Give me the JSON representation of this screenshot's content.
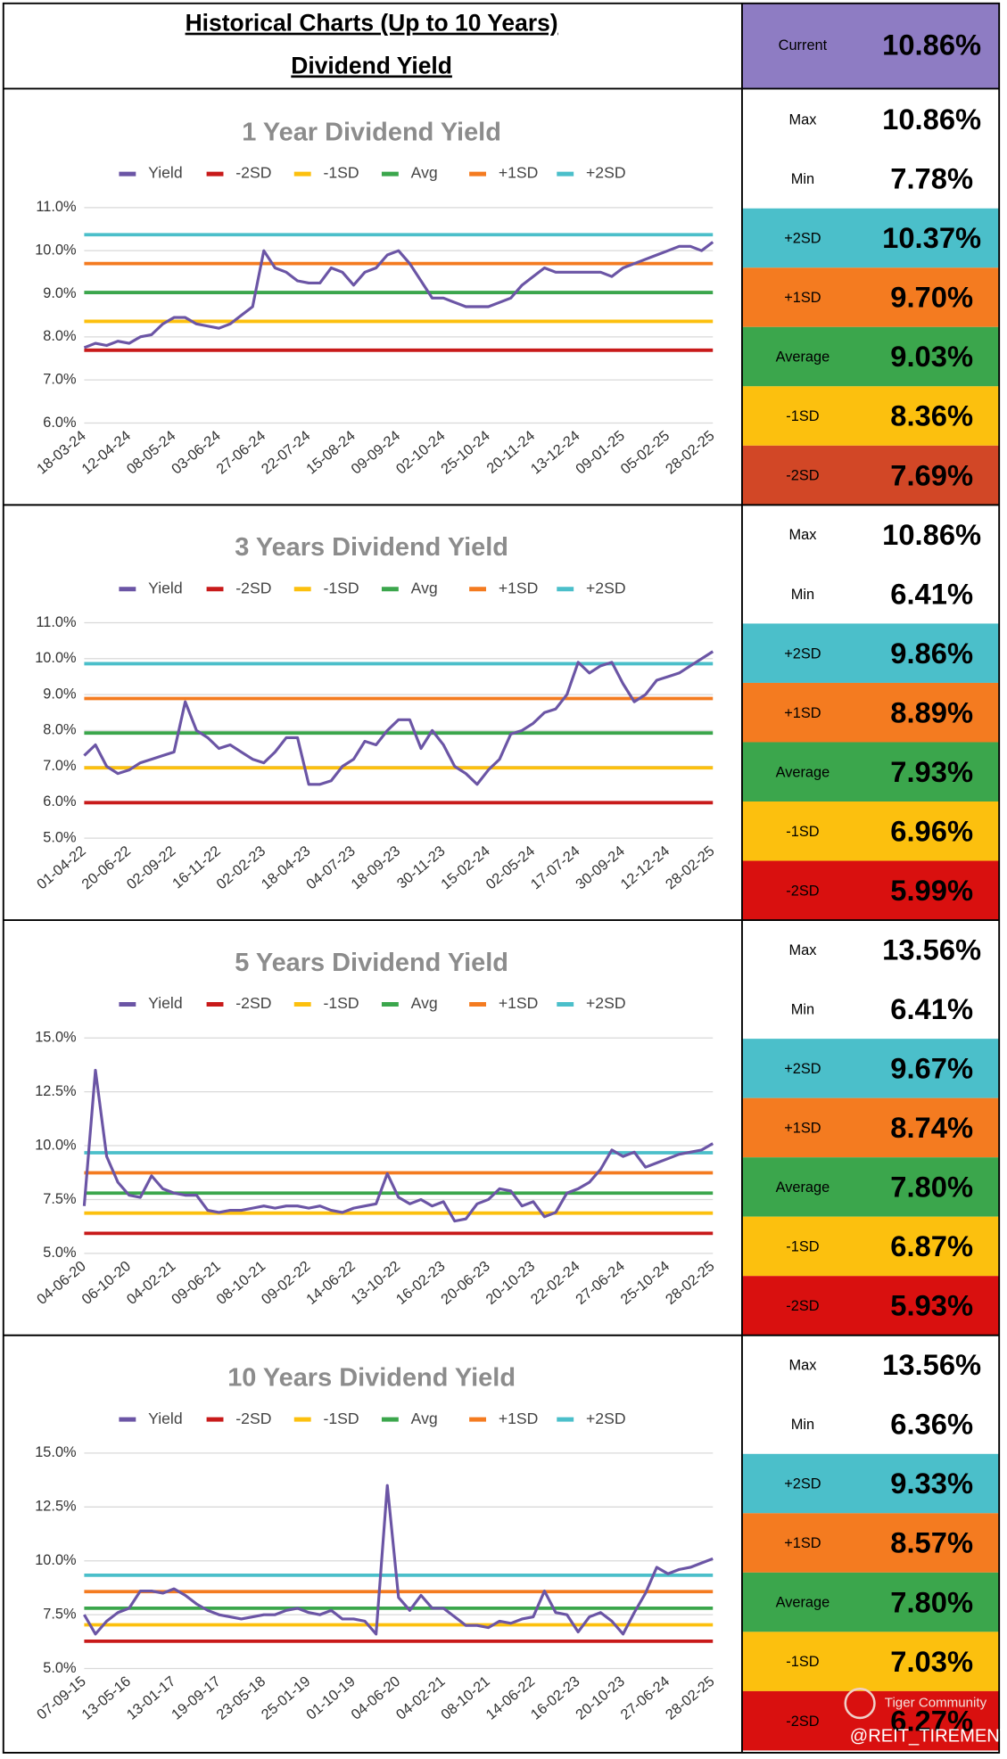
{
  "header": {
    "title": "Historical Charts (Up to 10 Years)",
    "subtitle": "Dividend Yield",
    "current_label": "Current",
    "current_value": 10.86,
    "current_value_label": "10.86%",
    "current_color": "#8e7cc3"
  },
  "chart_data": [
    {
      "type": "line",
      "title": "1 Year Dividend Yield",
      "categories": [
        "18-03-24",
        null,
        null,
        null,
        "12-04-24",
        null,
        null,
        null,
        "08-05-24",
        null,
        null,
        null,
        "03-06-24",
        null,
        null,
        null,
        "27-06-24",
        null,
        null,
        null,
        "22-07-24",
        null,
        null,
        null,
        "15-08-24",
        null,
        null,
        null,
        "09-09-24",
        null,
        null,
        null,
        "02-10-24",
        null,
        null,
        null,
        "25-10-24",
        null,
        null,
        null,
        "20-11-24",
        null,
        null,
        null,
        "13-12-24",
        null,
        null,
        null,
        "09-01-25",
        null,
        null,
        null,
        "05-02-25",
        null,
        null,
        null,
        "28-02-25"
      ],
      "series": [
        {
          "name": "Yield",
          "color": "#6b55a5",
          "values": [
            7.75,
            7.85,
            7.8,
            7.9,
            7.85,
            8.0,
            8.05,
            8.3,
            8.45,
            8.45,
            8.3,
            8.25,
            8.2,
            8.3,
            8.5,
            8.7,
            10.0,
            9.6,
            9.5,
            9.3,
            9.25,
            9.25,
            9.6,
            9.5,
            9.2,
            9.5,
            9.6,
            9.9,
            10.0,
            9.7,
            9.3,
            8.9,
            8.9,
            8.8,
            8.7,
            8.7,
            8.7,
            8.8,
            8.9,
            9.2,
            9.4,
            9.6,
            9.5,
            9.5,
            9.5,
            9.5,
            9.5,
            9.4,
            9.6,
            9.7,
            9.8,
            9.9,
            10.0,
            10.1,
            10.1,
            10.0,
            10.2
          ]
        }
      ],
      "ylim": [
        6,
        11
      ],
      "yticks": [
        {
          "value": 6,
          "label": "6.0%"
        },
        {
          "value": 7,
          "label": "7.0%"
        },
        {
          "value": 8,
          "label": "8.0%"
        },
        {
          "value": 9,
          "label": "9.0%"
        },
        {
          "value": 10,
          "label": "10.0%"
        },
        {
          "value": 11,
          "label": "11.0%"
        }
      ],
      "grid": true,
      "stats": [
        {
          "label": "Max",
          "value": 10.86,
          "value_label": "10.86%"
        },
        {
          "label": "Min",
          "value": 7.78,
          "value_label": "7.78%"
        },
        {
          "label": "+2SD",
          "legend": "+2SD",
          "value": 10.37,
          "value_label": "10.37%",
          "color": "#4bbfca"
        },
        {
          "label": "+1SD",
          "legend": "+1SD",
          "value": 9.7,
          "value_label": "9.70%",
          "color": "#f47b20"
        },
        {
          "label": "Average",
          "legend": "Avg",
          "value": 9.03,
          "value_label": "9.03%",
          "color": "#3ba64c"
        },
        {
          "label": "-1SD",
          "legend": "-1SD",
          "value": 8.36,
          "value_label": "8.36%",
          "color": "#fcc00e"
        },
        {
          "label": "-2SD",
          "legend": "-2SD",
          "value": 7.69,
          "value_label": "7.69%",
          "color": "#c81a1a",
          "cell_color": "#d24726"
        }
      ]
    },
    {
      "type": "line",
      "title": "3 Years Dividend Yield",
      "categories": [
        "01-04-22",
        null,
        null,
        null,
        "20-06-22",
        null,
        null,
        null,
        "02-09-22",
        null,
        null,
        null,
        "16-11-22",
        null,
        null,
        null,
        "02-02-23",
        null,
        null,
        null,
        "18-04-23",
        null,
        null,
        null,
        "04-07-23",
        null,
        null,
        null,
        "18-09-23",
        null,
        null,
        null,
        "30-11-23",
        null,
        null,
        null,
        "15-02-24",
        null,
        null,
        null,
        "02-05-24",
        null,
        null,
        null,
        "17-07-24",
        null,
        null,
        null,
        "30-09-24",
        null,
        null,
        null,
        "12-12-24",
        null,
        null,
        null,
        "28-02-25"
      ],
      "series": [
        {
          "name": "Yield",
          "color": "#6b55a5",
          "values": [
            7.3,
            7.6,
            7.0,
            6.8,
            6.9,
            7.1,
            7.2,
            7.3,
            7.4,
            8.8,
            8.0,
            7.8,
            7.5,
            7.6,
            7.4,
            7.2,
            7.1,
            7.4,
            7.8,
            7.8,
            6.5,
            6.5,
            6.6,
            7.0,
            7.2,
            7.7,
            7.6,
            8.0,
            8.3,
            8.3,
            7.5,
            8.0,
            7.6,
            7.0,
            6.8,
            6.5,
            6.9,
            7.2,
            7.9,
            8.0,
            8.2,
            8.5,
            8.6,
            9.0,
            9.9,
            9.6,
            9.8,
            9.9,
            9.3,
            8.8,
            9.0,
            9.4,
            9.5,
            9.6,
            9.8,
            10.0,
            10.2
          ]
        }
      ],
      "ylim": [
        5,
        11
      ],
      "yticks": [
        {
          "value": 5,
          "label": "5.0%"
        },
        {
          "value": 6,
          "label": "6.0%"
        },
        {
          "value": 7,
          "label": "7.0%"
        },
        {
          "value": 8,
          "label": "8.0%"
        },
        {
          "value": 9,
          "label": "9.0%"
        },
        {
          "value": 10,
          "label": "10.0%"
        },
        {
          "value": 11,
          "label": "11.0%"
        }
      ],
      "grid": true,
      "stats": [
        {
          "label": "Max",
          "value": 10.86,
          "value_label": "10.86%"
        },
        {
          "label": "Min",
          "value": 6.41,
          "value_label": "6.41%"
        },
        {
          "label": "+2SD",
          "legend": "+2SD",
          "value": 9.86,
          "value_label": "9.86%",
          "color": "#4bbfca"
        },
        {
          "label": "+1SD",
          "legend": "+1SD",
          "value": 8.89,
          "value_label": "8.89%",
          "color": "#f47b20"
        },
        {
          "label": "Average",
          "legend": "Avg",
          "value": 7.93,
          "value_label": "7.93%",
          "color": "#3ba64c"
        },
        {
          "label": "-1SD",
          "legend": "-1SD",
          "value": 6.96,
          "value_label": "6.96%",
          "color": "#fcc00e"
        },
        {
          "label": "-2SD",
          "legend": "-2SD",
          "value": 5.99,
          "value_label": "5.99%",
          "color": "#c81a1a",
          "cell_color": "#d9100f"
        }
      ]
    },
    {
      "type": "line",
      "title": "5 Years Dividend Yield",
      "categories": [
        "04-06-20",
        null,
        null,
        null,
        "06-10-20",
        null,
        null,
        null,
        "04-02-21",
        null,
        null,
        null,
        "09-06-21",
        null,
        null,
        null,
        "08-10-21",
        null,
        null,
        null,
        "09-02-22",
        null,
        null,
        null,
        "14-06-22",
        null,
        null,
        null,
        "13-10-22",
        null,
        null,
        null,
        "16-02-23",
        null,
        null,
        null,
        "20-06-23",
        null,
        null,
        null,
        "20-10-23",
        null,
        null,
        null,
        "22-02-24",
        null,
        null,
        null,
        "27-06-24",
        null,
        null,
        null,
        "25-10-24",
        null,
        null,
        null,
        "28-02-25"
      ],
      "series": [
        {
          "name": "Yield",
          "color": "#6b55a5",
          "values": [
            7.2,
            13.5,
            9.5,
            8.3,
            7.7,
            7.6,
            8.6,
            8.0,
            7.8,
            7.7,
            7.7,
            7.0,
            6.9,
            7.0,
            7.0,
            7.1,
            7.2,
            7.1,
            7.2,
            7.2,
            7.1,
            7.2,
            7.0,
            6.9,
            7.1,
            7.2,
            7.3,
            8.7,
            7.6,
            7.3,
            7.5,
            7.2,
            7.4,
            6.5,
            6.6,
            7.3,
            7.5,
            8.0,
            7.9,
            7.2,
            7.4,
            6.7,
            6.9,
            7.8,
            8.0,
            8.3,
            8.9,
            9.8,
            9.5,
            9.7,
            9.0,
            9.2,
            9.4,
            9.6,
            9.7,
            9.8,
            10.1
          ]
        }
      ],
      "ylim": [
        5,
        15
      ],
      "yticks": [
        {
          "value": 5,
          "label": "5.0%"
        },
        {
          "value": 7.5,
          "label": "7.5%"
        },
        {
          "value": 10,
          "label": "10.0%"
        },
        {
          "value": 12.5,
          "label": "12.5%"
        },
        {
          "value": 15,
          "label": "15.0%"
        }
      ],
      "grid": true,
      "stats": [
        {
          "label": "Max",
          "value": 13.56,
          "value_label": "13.56%"
        },
        {
          "label": "Min",
          "value": 6.41,
          "value_label": "6.41%"
        },
        {
          "label": "+2SD",
          "legend": "+2SD",
          "value": 9.67,
          "value_label": "9.67%",
          "color": "#4bbfca"
        },
        {
          "label": "+1SD",
          "legend": "+1SD",
          "value": 8.74,
          "value_label": "8.74%",
          "color": "#f47b20"
        },
        {
          "label": "Average",
          "legend": "Avg",
          "value": 7.8,
          "value_label": "7.80%",
          "color": "#3ba64c"
        },
        {
          "label": "-1SD",
          "legend": "-1SD",
          "value": 6.87,
          "value_label": "6.87%",
          "color": "#fcc00e"
        },
        {
          "label": "-2SD",
          "legend": "-2SD",
          "value": 5.93,
          "value_label": "5.93%",
          "color": "#c81a1a",
          "cell_color": "#d9100f"
        }
      ]
    },
    {
      "type": "line",
      "title": "10 Years Dividend Yield",
      "categories": [
        "07-09-15",
        null,
        null,
        null,
        "13-05-16",
        null,
        null,
        null,
        "13-01-17",
        null,
        null,
        null,
        "19-09-17",
        null,
        null,
        null,
        "23-05-18",
        null,
        null,
        null,
        "25-01-19",
        null,
        null,
        null,
        "01-10-19",
        null,
        null,
        null,
        "04-06-20",
        null,
        null,
        null,
        "04-02-21",
        null,
        null,
        null,
        "08-10-21",
        null,
        null,
        null,
        "14-06-22",
        null,
        null,
        null,
        "16-02-23",
        null,
        null,
        null,
        "20-10-23",
        null,
        null,
        null,
        "27-06-24",
        null,
        null,
        null,
        "28-02-25"
      ],
      "series": [
        {
          "name": "Yield",
          "color": "#6b55a5",
          "values": [
            7.5,
            6.6,
            7.2,
            7.6,
            7.8,
            8.6,
            8.6,
            8.5,
            8.7,
            8.4,
            8.0,
            7.7,
            7.5,
            7.4,
            7.3,
            7.4,
            7.5,
            7.5,
            7.7,
            7.8,
            7.6,
            7.5,
            7.7,
            7.3,
            7.3,
            7.2,
            6.6,
            13.5,
            8.3,
            7.7,
            8.4,
            7.8,
            7.8,
            7.4,
            7.0,
            7.0,
            6.9,
            7.2,
            7.1,
            7.3,
            7.4,
            8.6,
            7.6,
            7.5,
            6.7,
            7.4,
            7.6,
            7.2,
            6.6,
            7.6,
            8.5,
            9.7,
            9.4,
            9.6,
            9.7,
            9.9,
            10.1
          ]
        }
      ],
      "ylim": [
        5,
        15
      ],
      "yticks": [
        {
          "value": 5,
          "label": "5.0%"
        },
        {
          "value": 7.5,
          "label": "7.5%"
        },
        {
          "value": 10,
          "label": "10.0%"
        },
        {
          "value": 12.5,
          "label": "12.5%"
        },
        {
          "value": 15,
          "label": "15.0%"
        }
      ],
      "grid": true,
      "stats": [
        {
          "label": "Max",
          "value": 13.56,
          "value_label": "13.56%"
        },
        {
          "label": "Min",
          "value": 6.36,
          "value_label": "6.36%"
        },
        {
          "label": "+2SD",
          "legend": "+2SD",
          "value": 9.33,
          "value_label": "9.33%",
          "color": "#4bbfca"
        },
        {
          "label": "+1SD",
          "legend": "+1SD",
          "value": 8.57,
          "value_label": "8.57%",
          "color": "#f47b20"
        },
        {
          "label": "Average",
          "legend": "Avg",
          "value": 7.8,
          "value_label": "7.80%",
          "color": "#3ba64c"
        },
        {
          "label": "-1SD",
          "legend": "-1SD",
          "value": 7.03,
          "value_label": "7.03%",
          "color": "#fcc00e"
        },
        {
          "label": "-2SD",
          "legend": "-2SD",
          "value": 6.27,
          "value_label": "6.27%",
          "color": "#c81a1a",
          "cell_color": "#d9100f"
        }
      ]
    }
  ],
  "watermark": {
    "brand": "Tiger Community",
    "handle": "@REIT_TIREMENT"
  }
}
